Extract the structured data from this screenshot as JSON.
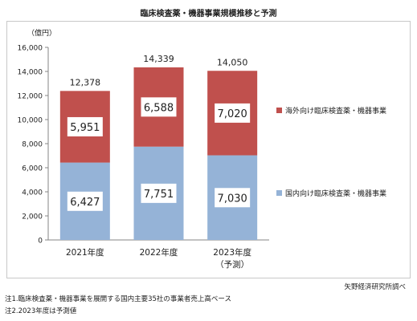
{
  "page": {
    "title": "臨床検査薬・機器事業規模推移と予測"
  },
  "chart_data": {
    "type": "bar",
    "stacked": true,
    "unit_label": "（億円）",
    "categories": [
      "2021年度",
      "2022年度",
      "2023年度"
    ],
    "category_sublabels": [
      "",
      "",
      "（予測）"
    ],
    "series": [
      {
        "name": "国内向け臨床検査薬・機器事業",
        "color": "#95B3D7",
        "values": [
          6427,
          7751,
          7030
        ]
      },
      {
        "name": "海外向け臨床検査薬・機器事業",
        "color": "#C0504D",
        "values": [
          5951,
          6588,
          7020
        ]
      }
    ],
    "totals": [
      12378,
      14339,
      14050
    ],
    "value_labels": {
      "domestic": [
        "6,427",
        "7,751",
        "7,030"
      ],
      "overseas": [
        "5,951",
        "6,588",
        "7,020"
      ],
      "totals": [
        "12,378",
        "14,339",
        "14,050"
      ]
    },
    "ylim": [
      0,
      16000
    ],
    "yticks": [
      0,
      2000,
      4000,
      6000,
      8000,
      10000,
      12000,
      14000,
      16000
    ],
    "ytick_labels": [
      "0",
      "2,000",
      "4,000",
      "6,000",
      "8,000",
      "10,000",
      "12,000",
      "14,000",
      "16,000"
    ],
    "grid": false,
    "legend_position": "right"
  },
  "footer": {
    "source": "矢野経済研究所調べ",
    "notes": [
      "注1.臨床検査薬・機器事業を展開する国内主要35社の事業者売上高ベース",
      "注2.2023年度は予測値"
    ]
  }
}
